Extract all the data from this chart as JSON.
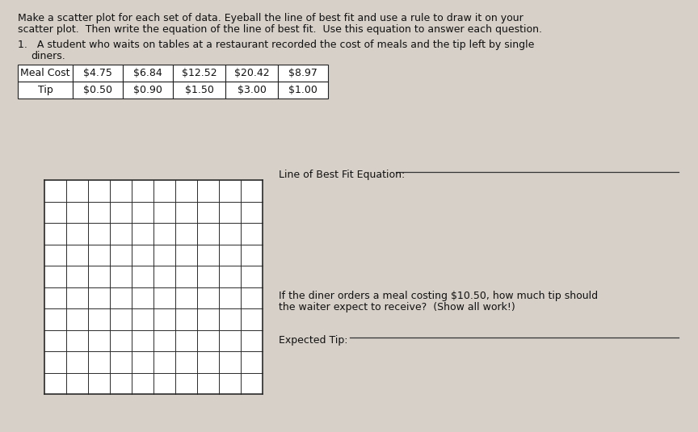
{
  "title_line1": "Make a scatter plot for each set of data. Eyeball the line of best fit and use a rule to draw it on your",
  "title_line2": "scatter plot.  Then write the equation of the line of best fit.  Use this equation to answer each question.",
  "problem_number": "1.",
  "problem_text": "A student who waits on tables at a restaurant recorded the cost of meals and the tip left by single",
  "problem_text2": "diners.",
  "table_headers": [
    "Meal Cost",
    "$4.75",
    "$6.84",
    "$12.52",
    "$20.42",
    "$8.97"
  ],
  "table_row2": [
    "Tip",
    "$0.50",
    "$0.90",
    "$1.50",
    "$3.00",
    "$1.00"
  ],
  "label_line_of_best_fit": "Line of Best Fit Equation:",
  "label_question_line1": "If the diner orders a meal costing $10.50, how much tip should",
  "label_question_line2": "the waiter expect to receive?  (Show all work!)",
  "label_expected_tip": "Expected Tip:",
  "background_color": "#d6d0c8",
  "grid_line_color": "#2a2a2a",
  "table_border_color": "#222222",
  "text_color": "#111111",
  "grid_cols": 10,
  "grid_rows": 10,
  "underline_color": "#333333"
}
